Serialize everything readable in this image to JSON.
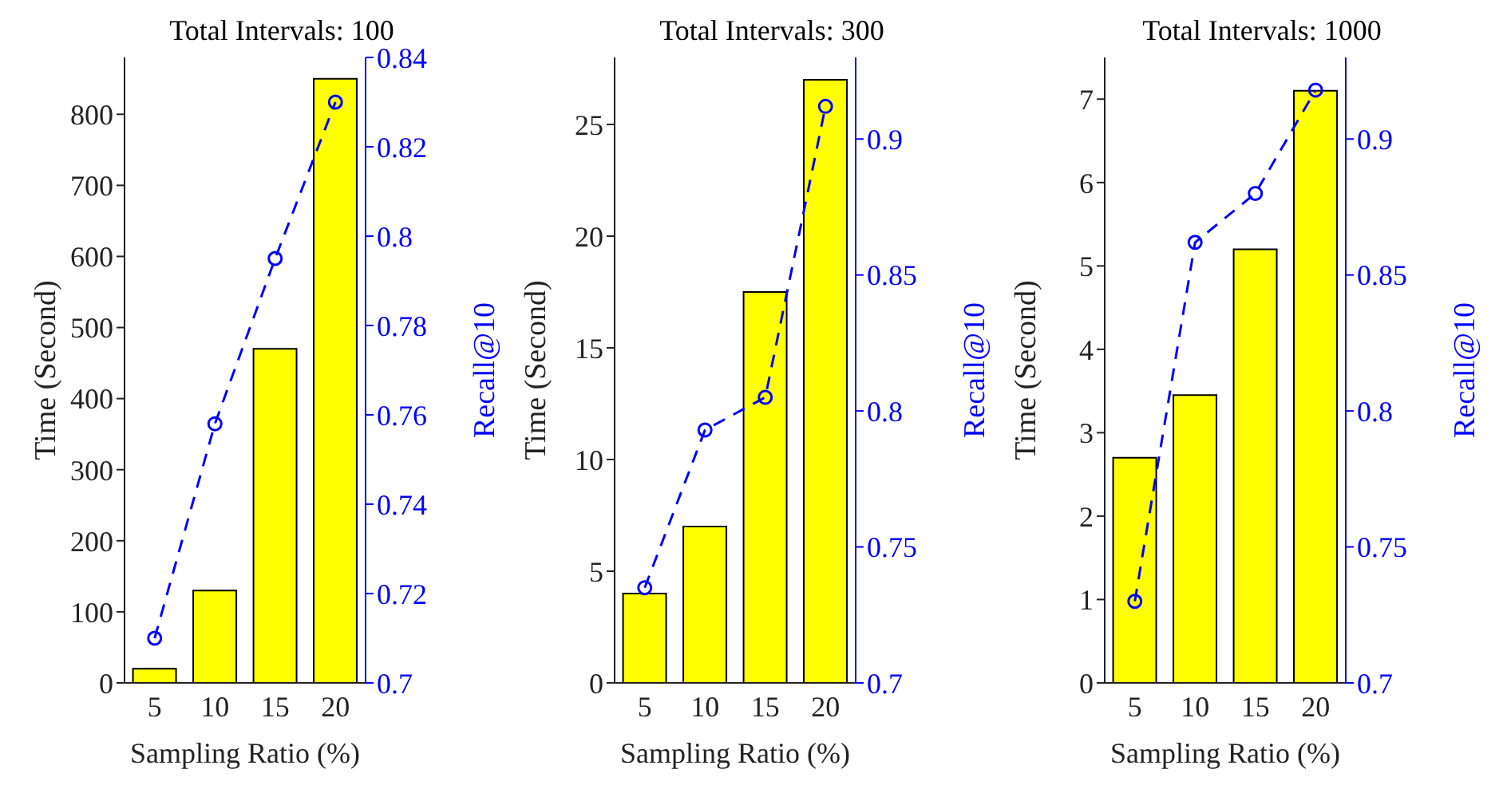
{
  "chart_data": [
    {
      "type": "bar",
      "title": "Total Intervals: 100",
      "xlabel": "Sampling Ratio (%)",
      "ylabel": "Time (Second)",
      "y2label": "Recall@10",
      "categories": [
        "5",
        "10",
        "15",
        "20"
      ],
      "grid": false,
      "legend": false,
      "ylim": [
        0,
        880
      ],
      "yticks": [
        0,
        100,
        200,
        300,
        400,
        500,
        600,
        700,
        800
      ],
      "y2lim": [
        0.7,
        0.84
      ],
      "y2ticks": [
        0.7,
        0.72,
        0.74,
        0.76,
        0.78,
        0.8,
        0.82,
        0.84
      ],
      "series": [
        {
          "color": "#ffff00",
          "values": [
            20,
            130,
            470,
            850
          ]
        },
        {
          "type": "line",
          "axis": "y2",
          "color": "#0000ff",
          "marker": "circle",
          "line_style": "dashed",
          "values": [
            0.71,
            0.758,
            0.795,
            0.83
          ]
        }
      ]
    },
    {
      "type": "bar",
      "title": "Total Intervals: 300",
      "xlabel": "Sampling Ratio (%)",
      "ylabel": "Time (Second)",
      "y2label": "Recall@10",
      "categories": [
        "5",
        "10",
        "15",
        "20"
      ],
      "grid": false,
      "legend": false,
      "ylim": [
        0,
        28
      ],
      "yticks": [
        0,
        5,
        10,
        15,
        20,
        25
      ],
      "y2lim": [
        0.7,
        0.93
      ],
      "y2ticks": [
        0.7,
        0.75,
        0.8,
        0.85,
        0.9
      ],
      "series": [
        {
          "color": "#ffff00",
          "values": [
            4,
            7,
            17.5,
            27
          ]
        },
        {
          "type": "line",
          "axis": "y2",
          "color": "#0000ff",
          "marker": "circle",
          "line_style": "dashed",
          "values": [
            0.735,
            0.793,
            0.805,
            0.912
          ]
        }
      ]
    },
    {
      "type": "bar",
      "title": "Total Intervals: 1000",
      "xlabel": "Sampling Ratio (%)",
      "ylabel": "Time (Second)",
      "y2label": "Recall@10",
      "categories": [
        "5",
        "10",
        "15",
        "20"
      ],
      "grid": false,
      "legend": false,
      "ylim": [
        0,
        7.5
      ],
      "yticks": [
        0,
        1,
        2,
        3,
        4,
        5,
        6,
        7
      ],
      "y2lim": [
        0.7,
        0.93
      ],
      "y2ticks": [
        0.7,
        0.75,
        0.8,
        0.85,
        0.9
      ],
      "series": [
        {
          "color": "#ffff00",
          "values": [
            2.7,
            3.45,
            5.2,
            7.1
          ]
        },
        {
          "type": "line",
          "axis": "y2",
          "color": "#0000ff",
          "marker": "circle",
          "line_style": "dashed",
          "values": [
            0.73,
            0.862,
            0.88,
            0.918
          ]
        }
      ]
    }
  ]
}
